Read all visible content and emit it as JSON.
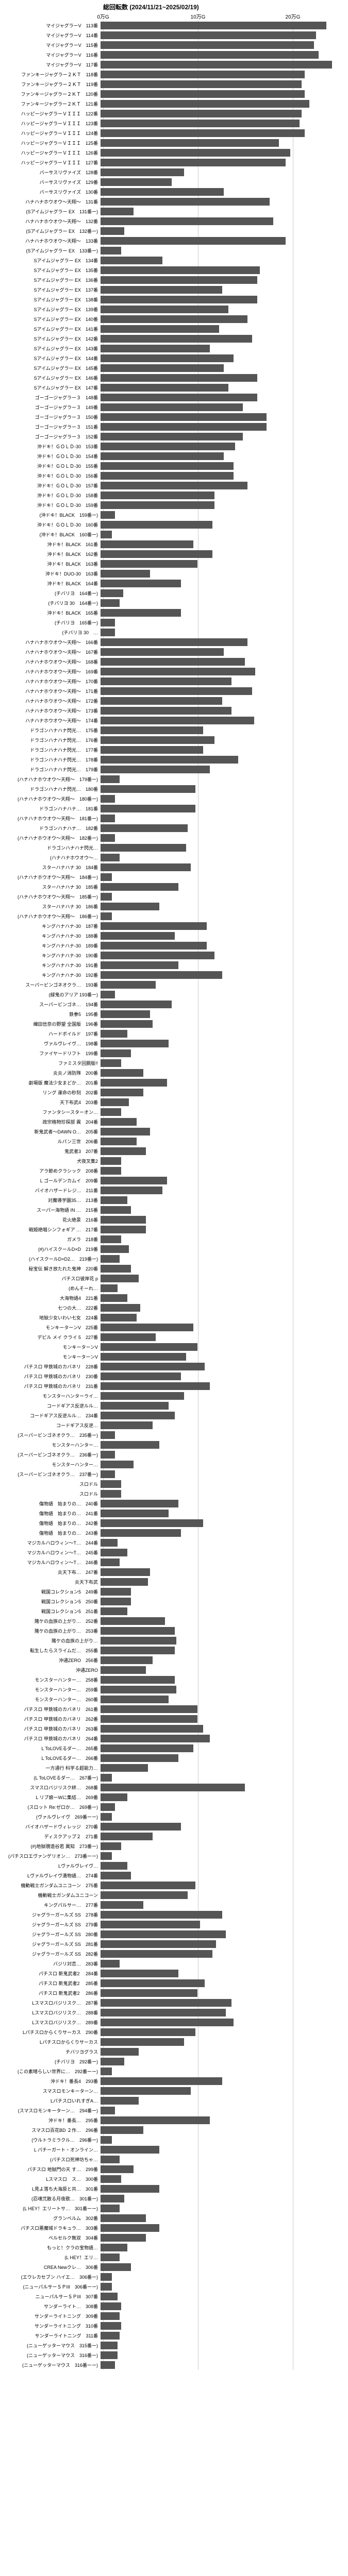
{
  "chart": {
    "type": "bar",
    "title": "総回転数 (2024/11/21~2025/02/19)",
    "title_fontsize": 12,
    "label_fontsize": 9,
    "axis_fontsize": 10,
    "xmax": 250000,
    "xticks": [
      {
        "value": 0,
        "label": "0万G"
      },
      {
        "value": 100000,
        "label": "10万G"
      },
      {
        "value": 200000,
        "label": "20万G"
      }
    ],
    "bar_color": "#555555",
    "grid_color": "#cccccc",
    "background_color": "#ffffff",
    "rows": [
      {
        "label": "マイジャグラーV　113番",
        "value": 238000
      },
      {
        "label": "マイジャグラーV　114番",
        "value": 227000
      },
      {
        "label": "マイジャグラーV　115番",
        "value": 225000
      },
      {
        "label": "マイジャグラーV　116番",
        "value": 230000
      },
      {
        "label": "マイジャグラーV　117番",
        "value": 244000
      },
      {
        "label": "ファンキージャグラー２ＫＴ　118番",
        "value": 215000
      },
      {
        "label": "ファンキージャグラー２ＫＴ　119番",
        "value": 212000
      },
      {
        "label": "ファンキージャグラー２ＫＴ　120番",
        "value": 215000
      },
      {
        "label": "ファンキージャグラー２ＫＴ　121番",
        "value": 220000
      },
      {
        "label": "ハッピージャグラーＶＩＩＩ　122番",
        "value": 212000
      },
      {
        "label": "ハッピージャグラーＶＩＩＩ　123番",
        "value": 210000
      },
      {
        "label": "ハッピージャグラーＶＩＩＩ　124番",
        "value": 215000
      },
      {
        "label": "ハッピージャグラーＶＩＩＩ　125番",
        "value": 188000
      },
      {
        "label": "ハッピージャグラーＶＩＩＩ　126番",
        "value": 200000
      },
      {
        "label": "ハッピージャグラーＶＩＩＩ　127番",
        "value": 195000
      },
      {
        "label": "バーサスリヴァイズ　128番",
        "value": 88000
      },
      {
        "label": "バーサスリヴァイズ　129番",
        "value": 75000
      },
      {
        "label": "バーサスリヴァイズ　130番",
        "value": 130000
      },
      {
        "label": "ハナハナホウオウ～天翔～　131番",
        "value": 178000
      },
      {
        "label": "(Sアイムジャグラー EX　131番ー)",
        "value": 35000
      },
      {
        "label": "ハナハナホウオウ～天翔～　132番",
        "value": 182000
      },
      {
        "label": "(Sアイムジャグラー EX　132番ー)",
        "value": 25000
      },
      {
        "label": "ハナハナホウオウ～天翔～　133番",
        "value": 195000
      },
      {
        "label": "(Sアイムジャグラー EX　133番ー)",
        "value": 22000
      },
      {
        "label": "Sアイムジャグラー EX　134番",
        "value": 65000
      },
      {
        "label": "Sアイムジャグラー EX　135番",
        "value": 168000
      },
      {
        "label": "Sアイムジャグラー EX　136番",
        "value": 165000
      },
      {
        "label": "Sアイムジャグラー EX　137番",
        "value": 128000
      },
      {
        "label": "Sアイムジャグラー EX　138番",
        "value": 165000
      },
      {
        "label": "Sアイムジャグラー EX　139番",
        "value": 135000
      },
      {
        "label": "Sアイムジャグラー EX　140番",
        "value": 155000
      },
      {
        "label": "Sアイムジャグラー EX　141番",
        "value": 125000
      },
      {
        "label": "Sアイムジャグラー EX　142番",
        "value": 160000
      },
      {
        "label": "Sアイムジャグラー EX　143番",
        "value": 115000
      },
      {
        "label": "Sアイムジャグラー EX　144番",
        "value": 140000
      },
      {
        "label": "Sアイムジャグラー EX　145番",
        "value": 130000
      },
      {
        "label": "Sアイムジャグラー EX　146番",
        "value": 165000
      },
      {
        "label": "Sアイムジャグラー EX　147番",
        "value": 135000
      },
      {
        "label": "ゴーゴージャグラー３　148番",
        "value": 165000
      },
      {
        "label": "ゴーゴージャグラー３　149番",
        "value": 150000
      },
      {
        "label": "ゴーゴージャグラー３　150番",
        "value": 175000
      },
      {
        "label": "ゴーゴージャグラー３　151番",
        "value": 175000
      },
      {
        "label": "ゴーゴージャグラー３　152番",
        "value": 150000
      },
      {
        "label": "沖ドキ！ＧＯＬＤ-30　153番",
        "value": 142000
      },
      {
        "label": "沖ドキ！ＧＯＬＤ-30　154番",
        "value": 130000
      },
      {
        "label": "沖ドキ！ＧＯＬＤ-30　155番",
        "value": 140000
      },
      {
        "label": "沖ドキ！ＧＯＬＤ-30　156番",
        "value": 140000
      },
      {
        "label": "沖ドキ！ＧＯＬＤ-30　157番",
        "value": 155000
      },
      {
        "label": "沖ドキ！ＧＯＬＤ-30　158番",
        "value": 120000
      },
      {
        "label": "沖ドキ！ＧＯＬＤ-30　159番",
        "value": 120000
      },
      {
        "label": "(沖ドキ！BLACK　159番ー)",
        "value": 15000
      },
      {
        "label": "沖ドキ！ＧＯＬＤ-30　160番",
        "value": 118000
      },
      {
        "label": "(沖ドキ！BLACK　160番ー)",
        "value": 12000
      },
      {
        "label": "沖ドキ！BLACK　161番",
        "value": 98000
      },
      {
        "label": "沖ドキ！BLACK　162番",
        "value": 118000
      },
      {
        "label": "沖ドキ！BLACK　163番",
        "value": 102000
      },
      {
        "label": "沖ドキ！DUO-30　163番",
        "value": 52000
      },
      {
        "label": "沖ドキ！BLACK　164番",
        "value": 85000
      },
      {
        "label": "(チバリヨ　164番ー)",
        "value": 24000
      },
      {
        "label": "(チバリヨ 30　164番ー)",
        "value": 20000
      },
      {
        "label": "沖ドキ！BLACK　165番",
        "value": 85000
      },
      {
        "label": "(チバリヨ　165番ー)",
        "value": 15000
      },
      {
        "label": "(チバリヨ 30　…",
        "value": 15000
      },
      {
        "label": "ハナハナホウオウ～天翔～　166番",
        "value": 155000
      },
      {
        "label": "ハナハナホウオウ～天翔～　167番",
        "value": 130000
      },
      {
        "label": "ハナハナホウオウ～天翔～　168番",
        "value": 152000
      },
      {
        "label": "ハナハナホウオウ～天翔～　169番",
        "value": 163000
      },
      {
        "label": "ハナハナホウオウ～天翔～　170番",
        "value": 138000
      },
      {
        "label": "ハナハナホウオウ～天翔～　171番",
        "value": 160000
      },
      {
        "label": "ハナハナホウオウ～天翔～　172番",
        "value": 128000
      },
      {
        "label": "ハナハナホウオウ～天翔～　173番",
        "value": 138000
      },
      {
        "label": "ハナハナホウオウ～天翔～　174番",
        "value": 162000
      },
      {
        "label": "ドラゴンハナハナ閃光…　175番",
        "value": 108000
      },
      {
        "label": "ドラゴンハナハナ閃光…　176番",
        "value": 120000
      },
      {
        "label": "ドラゴンハナハナ閃光…　177番",
        "value": 108000
      },
      {
        "label": "ドラゴンハナハナ閃光…　178番",
        "value": 145000
      },
      {
        "label": "ドラゴンハナハナ閃光…　179番",
        "value": 115000
      },
      {
        "label": "(ハナハナホウオウ～天翔～　179番ー)",
        "value": 20000
      },
      {
        "label": "ドラゴンハナハナ閃光…　180番",
        "value": 100000
      },
      {
        "label": "(ハナハナホウオウ～天翔～　180番ー)",
        "value": 15000
      },
      {
        "label": "ドラゴンハナハナ…　181番",
        "value": 100000
      },
      {
        "label": "(ハナハナホウオウ～天翔～　181番ー)",
        "value": 15000
      },
      {
        "label": "ドラゴンハナハナ…　182番",
        "value": 92000
      },
      {
        "label": "(ハナハナホウオウ～天翔～　182番ー)",
        "value": 15000
      },
      {
        "label": "ドラゴンハナハナ閃光…",
        "value": 90000
      },
      {
        "label": "(ハナハナホウオウ～…",
        "value": 20000
      },
      {
        "label": "スターハナハナ 30　184番",
        "value": 95000
      },
      {
        "label": "(ハナハナホウオウ～天翔～　184番ー)",
        "value": 12000
      },
      {
        "label": "スターハナハナ 30　185番",
        "value": 82000
      },
      {
        "label": "(ハナハナホウオウ～天翔～　185番ー)",
        "value": 12000
      },
      {
        "label": "スターハナハナ 30　186番",
        "value": 62000
      },
      {
        "label": "(ハナハナホウオウ～天翔～　186番ー)",
        "value": 12000
      },
      {
        "label": "キングハナハナ-30　187番",
        "value": 112000
      },
      {
        "label": "キングハナハナ-30　188番",
        "value": 78000
      },
      {
        "label": "キングハナハナ-30　189番",
        "value": 112000
      },
      {
        "label": "キングハナハナ-30　190番",
        "value": 120000
      },
      {
        "label": "キングハナハナ-30　191番",
        "value": 82000
      },
      {
        "label": "キングハナハナ-30　192番",
        "value": 128000
      },
      {
        "label": "スーパービンゴネオクラ…　193番",
        "value": 58000
      },
      {
        "label": "(緑鬼のアリア 193番ー)",
        "value": 15000
      },
      {
        "label": "スーパービンゴネ…　194番",
        "value": 75000
      },
      {
        "label": "鉄拳5　195番",
        "value": 52000
      },
      {
        "label": "織田信奈の野望 全国版　196番",
        "value": 55000
      },
      {
        "label": "ハードボイルド　197番",
        "value": 28000
      },
      {
        "label": "ヴァルヴレイヴ…　198番",
        "value": 72000
      },
      {
        "label": "ファイヤードリフト　199番",
        "value": 32000
      },
      {
        "label": "ファミスタ回胴版!!　",
        "value": 22000
      },
      {
        "label": "炎炎ノ消防隊　200番",
        "value": 45000
      },
      {
        "label": "劇場版 魔法少女まどか…　201番",
        "value": 70000
      },
      {
        "label": "リング 運命の秒刻　202番",
        "value": 45000
      },
      {
        "label": "天下布武4　203番",
        "value": 30000
      },
      {
        "label": "ファンタシースターオン…　",
        "value": 22000
      },
      {
        "label": "政宗格物珍探部 異　204番",
        "value": 38000
      },
      {
        "label": "新鬼武者～DAWN O…　205番",
        "value": 52000
      },
      {
        "label": "ルパン三世　206番",
        "value": 38000
      },
      {
        "label": "鬼武者3　207番",
        "value": 48000
      },
      {
        "label": "犬夜叉集2　",
        "value": 22000
      },
      {
        "label": "アラ節めクラシック　208番",
        "value": 22000
      },
      {
        "label": "L ゴールデンカムイ　209番",
        "value": 70000
      },
      {
        "label": "バイオハザードレジ…　211番",
        "value": 65000
      },
      {
        "label": "対魔導学園35…　213番",
        "value": 28000
      },
      {
        "label": "スーパー海物語 IN …　215番",
        "value": 32000
      },
      {
        "label": "花火絶景　216番",
        "value": 48000
      },
      {
        "label": "戦姫絶唱シンフォギア …　217番",
        "value": 48000
      },
      {
        "label": "ガメラ　218番",
        "value": 22000
      },
      {
        "label": "(#)ハイスクールD×D　219番",
        "value": 30000
      },
      {
        "label": "(ハイスクールD×D2…　219番ー)",
        "value": 20000
      },
      {
        "label": "秘宝伝 解き放たれた鬼神　220番",
        "value": 32000
      },
      {
        "label": "パチスロ彼岸花 p",
        "value": 40000
      },
      {
        "label": "(めんそーれ…",
        "value": 18000
      },
      {
        "label": "大海物語4　221番",
        "value": 28000
      },
      {
        "label": "七つの大…　222番",
        "value": 42000
      },
      {
        "label": "地獄少女いわい七女　224番",
        "value": 38000
      },
      {
        "label": "モンキーターンV　225番",
        "value": 98000
      },
      {
        "label": "デビル メイ クライ 5　227番",
        "value": 58000
      },
      {
        "label": "モンキーターンV",
        "value": 102000
      },
      {
        "label": "モンキーターンV",
        "value": 90000
      },
      {
        "label": "パチスロ 甲鉄城のカバネリ　228番",
        "value": 110000
      },
      {
        "label": "パチスロ 甲鉄城のカバネリ　230番",
        "value": 85000
      },
      {
        "label": "パチスロ 甲鉄城のカバネリ　231番",
        "value": 115000
      },
      {
        "label": "モンスターハンターライ…",
        "value": 88000
      },
      {
        "label": "コードギアス反逆ルル…　",
        "value": 72000
      },
      {
        "label": "コードギアス反逆ルル…　234番",
        "value": 78000
      },
      {
        "label": "コードギアス反逆…",
        "value": 55000
      },
      {
        "label": "(スーパービンゴネオクラ…　235番ー)",
        "value": 15000
      },
      {
        "label": "モンスターハンター…",
        "value": 62000
      },
      {
        "label": "(スーパービンゴネオクラ…　236番ー)",
        "value": 15000
      },
      {
        "label": "モンスターハンター…",
        "value": 35000
      },
      {
        "label": "(スーパービンゴネオクラ…　237番ー)",
        "value": 15000
      },
      {
        "label": "スロドル",
        "value": 22000
      },
      {
        "label": "スロドル",
        "value": 22000
      },
      {
        "label": "傷物語　始まりの…　240番",
        "value": 82000
      },
      {
        "label": "傷物語　始まりの…　241番",
        "value": 72000
      },
      {
        "label": "傷物語　始まりの…　242番",
        "value": 108000
      },
      {
        "label": "傷物語　始まりの…　243番",
        "value": 85000
      },
      {
        "label": "マジカルハロウィン～T…　244番",
        "value": 18000
      },
      {
        "label": "マジカルハロウィン～T…　245番",
        "value": 28000
      },
      {
        "label": "マジカルハロウィン～T…　246番",
        "value": 20000
      },
      {
        "label": "炎天下布…　247番",
        "value": 52000
      },
      {
        "label": "炎天下布武　",
        "value": 50000
      },
      {
        "label": "戦国コレクション5　249番",
        "value": 32000
      },
      {
        "label": "戦国コレクション5　250番",
        "value": 32000
      },
      {
        "label": "戦国コレクション5　251番",
        "value": 28000
      },
      {
        "label": "賭ケの血族の上がり…　252番",
        "value": 68000
      },
      {
        "label": "賭ケの血族の上がり…　253番",
        "value": 78000
      },
      {
        "label": "賭ケの血族の上がり…",
        "value": 80000
      },
      {
        "label": "転生したらスライムだ…　255番",
        "value": 78000
      },
      {
        "label": "沖通ZERO　256番",
        "value": 55000
      },
      {
        "label": "沖通ZERO　",
        "value": 48000
      },
      {
        "label": "モンスターハンター…　258番",
        "value": 78000
      },
      {
        "label": "モンスターハンター…　259番",
        "value": 80000
      },
      {
        "label": "モンスターハンター…　260番",
        "value": 72000
      },
      {
        "label": "パチスロ 甲鉄城のカバネリ　261番",
        "value": 102000
      },
      {
        "label": "パチスロ 甲鉄城のカバネリ　262番",
        "value": 102000
      },
      {
        "label": "パチスロ 甲鉄城のカバネリ　263番",
        "value": 108000
      },
      {
        "label": "パチスロ 甲鉄城のカバネリ　264番",
        "value": 115000
      },
      {
        "label": "L ToLOVEるダー…　265番",
        "value": 98000
      },
      {
        "label": "L ToLOVEるダー…　266番",
        "value": 82000
      },
      {
        "label": "一方通行 科学る超能力…",
        "value": 50000
      },
      {
        "label": "(L ToLOVEるダー…　267番ー)",
        "value": 12000
      },
      {
        "label": "スマスロバジリスク絆…　268番",
        "value": 152000
      },
      {
        "label": "L リブ娘ーWに集結…　269番",
        "value": 28000
      },
      {
        "label": "(スロット Re:ゼロか…　269番ー)",
        "value": 15000
      },
      {
        "label": "(ヴァルヴレイヴ　269番ーー)",
        "value": 12000
      },
      {
        "label": "バイオハザードヴィレッジ　270番",
        "value": 85000
      },
      {
        "label": "ディスクアップ２　271番",
        "value": 55000
      },
      {
        "label": "(#)地獄覗造谷若 異知　273番ー)",
        "value": 22000
      },
      {
        "label": "(パチスロエヴァンゲリオン…　273番ーー)",
        "value": 12000
      },
      {
        "label": "Lヴァルヴレイヴ…",
        "value": 28000
      },
      {
        "label": "Lヴァルヴレイヴ満物語…　274番",
        "value": 32000
      },
      {
        "label": "機動戦士ガンダムユニコーン　275番",
        "value": 100000
      },
      {
        "label": "機動戦士ガンダムユニコーン",
        "value": 92000
      },
      {
        "label": "キングパルサー…　277番",
        "value": 45000
      },
      {
        "label": "ジャグラーガールズ SS　278番",
        "value": 128000
      },
      {
        "label": "ジャグラーガールズ SS　279番",
        "value": 105000
      },
      {
        "label": "ジャグラーガールズ SS　280番",
        "value": 132000
      },
      {
        "label": "ジャグラーガールズ SS　281番",
        "value": 122000
      },
      {
        "label": "ジャグラーガールズ SS　282番",
        "value": 118000
      },
      {
        "label": "バジリ対恋…　283番",
        "value": 20000
      },
      {
        "label": "パチスロ 新鬼武者2 　284番",
        "value": 82000
      },
      {
        "label": "パチスロ 新鬼武者2 　285番",
        "value": 110000
      },
      {
        "label": "パチスロ 新鬼武者2 　286番",
        "value": 102000
      },
      {
        "label": "Lスマスロバジリスク…　287番",
        "value": 138000
      },
      {
        "label": "Lスマスロバジリスク…　288番",
        "value": 132000
      },
      {
        "label": "Lスマスロバジリスク…　289番",
        "value": 140000
      },
      {
        "label": "Lパチスロからくりサーカス　290番",
        "value": 100000
      },
      {
        "label": "Lパチスロからくりサーカス",
        "value": 88000
      },
      {
        "label": "チバリヨグラス　",
        "value": 40000
      },
      {
        "label": "(チバリヨ　292番ー)",
        "value": 25000
      },
      {
        "label": "(この素晴らしい世界に…　292番ーー)",
        "value": 12000
      },
      {
        "label": "沖ドキ！番長4　293番",
        "value": 128000
      },
      {
        "label": "スマスロモンキーターン…",
        "value": 95000
      },
      {
        "label": "LパチスロいれすぎA…",
        "value": 40000
      },
      {
        "label": "(スマスロモンキーターン…　294番ー)",
        "value": 15000
      },
      {
        "label": "沖ドキ！番長…　295番",
        "value": 115000
      },
      {
        "label": "スマスロ百花BD ２作…　296番",
        "value": 45000
      },
      {
        "label": "(ウルトラミラクル…　296番ー)",
        "value": 12000
      },
      {
        "label": "L パチーガート・オンライン…",
        "value": 62000
      },
      {
        "label": "(パチスロ死神坊ちゃ…　",
        "value": 20000
      },
      {
        "label": "パチスロ 地獄門の天 す…　299番",
        "value": 35000
      },
      {
        "label": "Lスマスロ　ス…　300番",
        "value": 22000
      },
      {
        "label": "L見よ落ち大海原と共…　301番",
        "value": 62000
      },
      {
        "label": "(忍魂弐散る月夜歌…　301番ー)",
        "value": 25000
      },
      {
        "label": "(L HEY！エリートサ…　301番ーー)",
        "value": 20000
      },
      {
        "label": "グランベルム　302番",
        "value": 48000
      },
      {
        "label": "パチスロ悪魔城ドラキュラ…　303番",
        "value": 62000
      },
      {
        "label": "ベルセルク無双　304番",
        "value": 48000
      },
      {
        "label": "もっと！クラの宝物語…　",
        "value": 28000
      },
      {
        "label": "(L HEY！エリ…",
        "value": 20000
      },
      {
        "label": "CREA Newクレ…　306番",
        "value": 32000
      },
      {
        "label": "(エウレカセブン ハイエ…　306番ー)",
        "value": 12000
      },
      {
        "label": "(ニューパルサーＳＰIII　306番ーー)",
        "value": 12000
      },
      {
        "label": "ニューパルサーＳＰIII　307番",
        "value": 18000
      },
      {
        "label": "サンダーライト…　308番",
        "value": 22000
      },
      {
        "label": "サンダーライトニング　309番",
        "value": 20000
      },
      {
        "label": "サンダーライトニング　310番",
        "value": 22000
      },
      {
        "label": "サンダーライトニング　311番",
        "value": 20000
      },
      {
        "label": "(ニューゲッターマウス　315番ー)",
        "value": 18000
      },
      {
        "label": "(ニューゲッターマウス　316番ー)",
        "value": 18000
      },
      {
        "label": "(ニューゲッターマウス　316番ーー)",
        "value": 15000
      }
    ]
  }
}
